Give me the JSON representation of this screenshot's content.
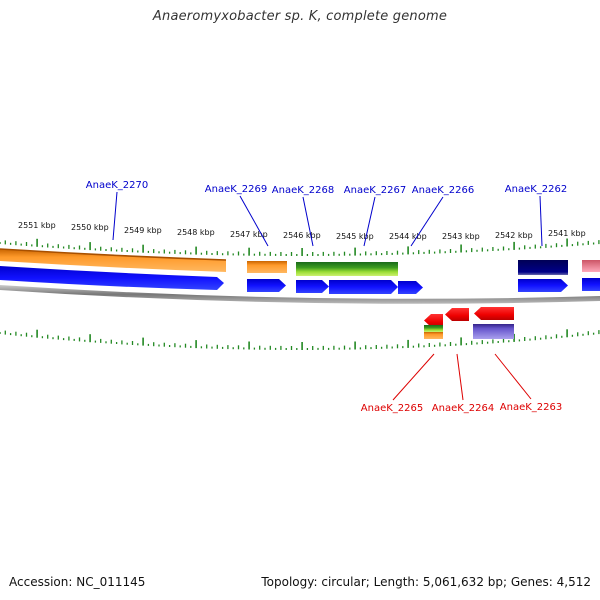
{
  "title": "Anaeromyxobacter sp. K, complete genome",
  "footer": {
    "accession": "Accession: NC_011145",
    "topology": "Topology: circular; Length: 5,061,632 bp; Genes: 4,512"
  },
  "colors": {
    "forward_gene": "#0000ff",
    "reverse_gene": "#ff0000",
    "forward_label": "#0000cc",
    "reverse_label": "#dd0000",
    "tick": "#228822",
    "backbone": "#888888",
    "orange_feature": "#ff8c1a",
    "green_feature": "#33aa11",
    "navy_feature": "#000077",
    "pink_feature": "#ee7788",
    "purple_feature": "#6655cc"
  },
  "kbp_labels": [
    "2551 kbp",
    "2550 kbp",
    "2549 kbp",
    "2548 kbp",
    "2547 kbp",
    "2546 kbp",
    "2545 kbp",
    "2544 kbp",
    "2543 kbp",
    "2542 kbp",
    "2541 kbp"
  ],
  "genes_top": [
    {
      "label": "AnaeK_2270",
      "name": "anaek-2270"
    },
    {
      "label": "AnaeK_2269",
      "name": "anaek-2269"
    },
    {
      "label": "AnaeK_2268",
      "name": "anaek-2268"
    },
    {
      "label": "AnaeK_2267",
      "name": "anaek-2267"
    },
    {
      "label": "AnaeK_2266",
      "name": "anaek-2266"
    },
    {
      "label": "AnaeK_2262",
      "name": "anaek-2262"
    }
  ],
  "genes_bottom": [
    {
      "label": "AnaeK_2265",
      "name": "anaek-2265"
    },
    {
      "label": "AnaeK_2264",
      "name": "anaek-2264"
    },
    {
      "label": "AnaeK_2263",
      "name": "anaek-2263"
    }
  ]
}
